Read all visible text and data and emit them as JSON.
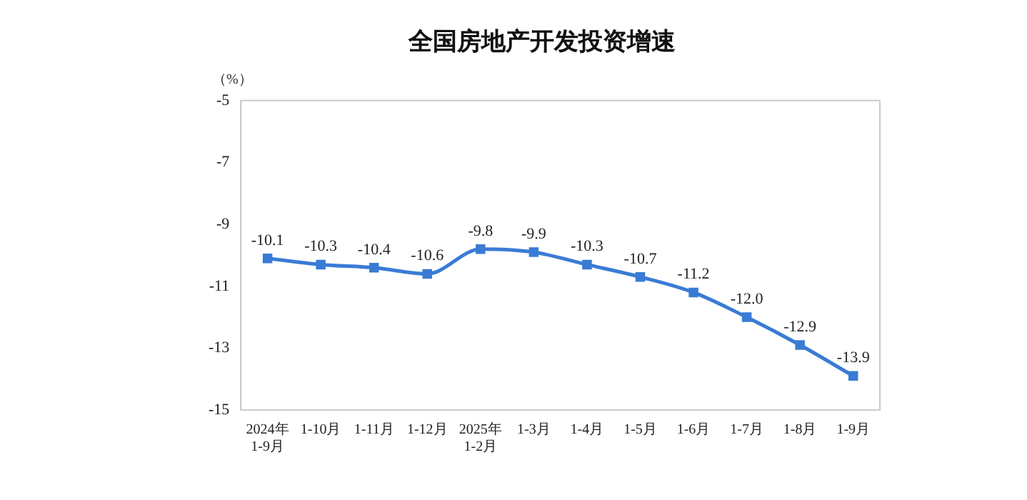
{
  "chart_data": {
    "type": "line",
    "title": "全国房地产开发投资增速",
    "ylabel": "（%）",
    "categories": [
      "2024年\n1-9月",
      "1-10月",
      "1-11月",
      "1-12月",
      "2025年\n1-2月",
      "1-3月",
      "1-4月",
      "1-5月",
      "1-6月",
      "1-7月",
      "1-8月",
      "1-9月"
    ],
    "series": [
      {
        "color": "#3a7bd5",
        "values": [
          -10.1,
          -10.3,
          -10.4,
          -10.6,
          -9.8,
          -9.9,
          -10.3,
          -10.7,
          -11.2,
          -12.0,
          -12.9,
          -13.9
        ],
        "value_labels": [
          "-10.1",
          "-10.3",
          "-10.4",
          "-10.6",
          "-9.8",
          "-9.9",
          "-10.3",
          "-10.7",
          "-11.2",
          "-12.0",
          "-12.9",
          "-13.9"
        ]
      }
    ],
    "ylim": [
      -15,
      -5
    ],
    "yticks": [
      -15,
      -13,
      -11,
      -9,
      -7,
      -5
    ],
    "grid": false,
    "legend": false,
    "marker": "square",
    "line_style": "solid"
  }
}
